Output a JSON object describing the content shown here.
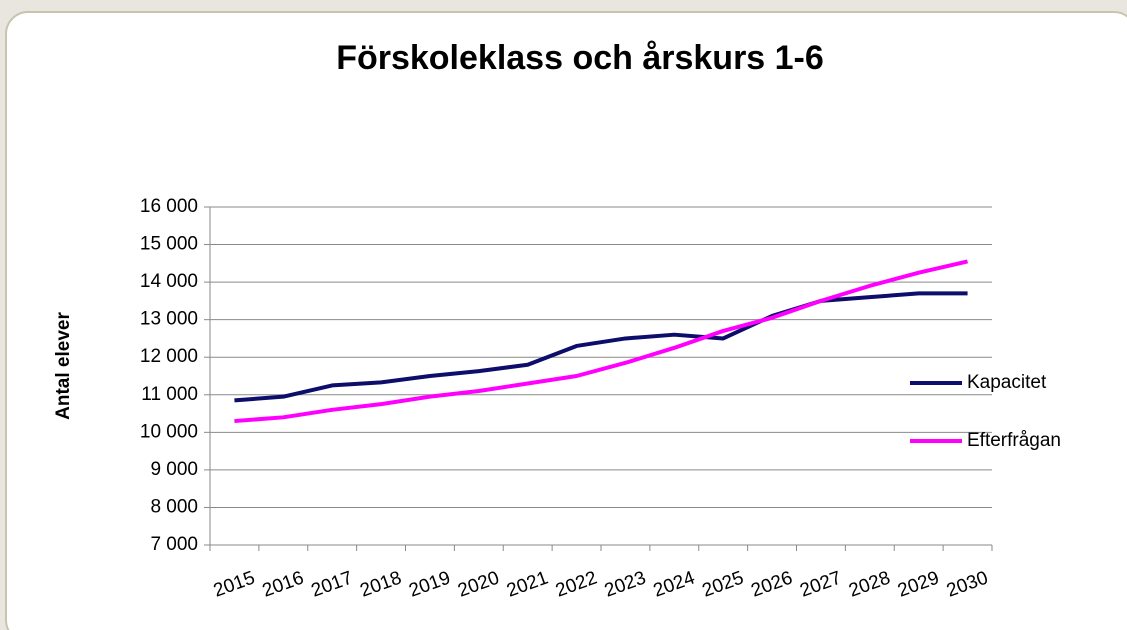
{
  "chart_data": {
    "type": "line",
    "title": "Förskoleklass och årskurs 1-6",
    "y_label": "Antal elever",
    "categories": [
      "2015",
      "2016",
      "2017",
      "2018",
      "2019",
      "2020",
      "2021",
      "2022",
      "2023",
      "2024",
      "2025",
      "2026",
      "2027",
      "2028",
      "2029",
      "2030"
    ],
    "series": [
      {
        "name": "Kapacitet",
        "color": "#0d0d6b",
        "values": [
          10850,
          10950,
          11250,
          11330,
          11500,
          11630,
          11800,
          12300,
          12500,
          12600,
          12500,
          13100,
          13500,
          13600,
          13700,
          13700
        ]
      },
      {
        "name": "Efterfrågan",
        "color": "#ff00ff",
        "values": [
          10300,
          10400,
          10600,
          10750,
          10950,
          11100,
          11300,
          11500,
          11850,
          12250,
          12700,
          13050,
          13500,
          13900,
          14250,
          14550
        ]
      }
    ],
    "ylim": [
      7000,
      16000
    ],
    "yticks": [
      {
        "value": 7000,
        "label": "7 000"
      },
      {
        "value": 8000,
        "label": "8 000"
      },
      {
        "value": 9000,
        "label": "9 000"
      },
      {
        "value": 10000,
        "label": "10 000"
      },
      {
        "value": 11000,
        "label": "11 000"
      },
      {
        "value": 12000,
        "label": "12 000"
      },
      {
        "value": 13000,
        "label": "13 000"
      },
      {
        "value": 14000,
        "label": "14 000"
      },
      {
        "value": 15000,
        "label": "15 000"
      },
      {
        "value": 16000,
        "label": "16 000"
      }
    ],
    "grid": true,
    "legend": "right"
  }
}
